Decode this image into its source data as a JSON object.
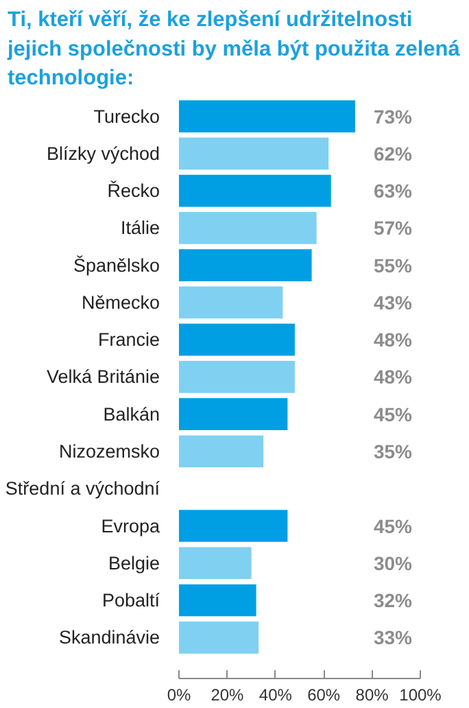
{
  "chart_data": {
    "type": "bar",
    "orientation": "horizontal",
    "title": "Ti, kteří věří, že ke zlepšení udržitelnosti\njejich společnosti by měla být použita zelená\ntechnologie:",
    "categories": [
      "Turecko",
      "Blízky východ",
      "Řecko",
      "Itálie",
      "Španělsko",
      "Německo",
      "Francie",
      "Velká Británie",
      "Balkán",
      "Nizozemsko",
      "Střední a východní\nEvropa",
      "Belgie",
      "Pobaltí",
      "Skandinávie"
    ],
    "values": [
      73,
      62,
      63,
      57,
      55,
      43,
      48,
      48,
      45,
      35,
      45,
      30,
      32,
      33
    ],
    "colors": [
      "#009fe3",
      "#80d0f2",
      "#009fe3",
      "#80d0f2",
      "#009fe3",
      "#80d0f2",
      "#009fe3",
      "#80d0f2",
      "#009fe3",
      "#80d0f2",
      "#009fe3",
      "#80d0f2",
      "#009fe3",
      "#80d0f2"
    ],
    "value_labels": [
      "73%",
      "62%",
      "63%",
      "57%",
      "55%",
      "43%",
      "48%",
      "48%",
      "45%",
      "35%",
      "45%",
      "30%",
      "32%",
      "33%"
    ],
    "xlim": [
      0,
      100
    ],
    "xticks": [
      {
        "value": 0,
        "label": "0%"
      },
      {
        "value": 20,
        "label": "20%"
      },
      {
        "value": 40,
        "label": "40%"
      },
      {
        "value": 60,
        "label": "60%"
      },
      {
        "value": 80,
        "label": "80%"
      },
      {
        "value": 100,
        "label": "100%"
      }
    ],
    "grid": false
  }
}
